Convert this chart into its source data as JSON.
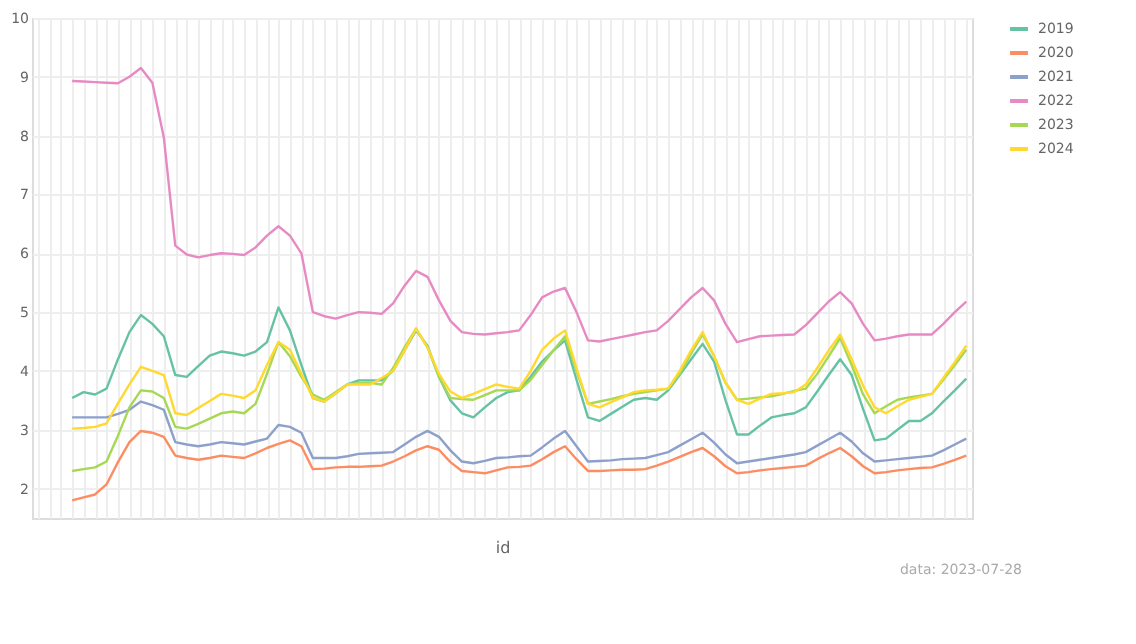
{
  "chart_data": {
    "type": "line",
    "xlabel": "id",
    "annotations": [
      "data: 2023-07-28"
    ],
    "categories": [
      null,
      null,
      null,
      null,
      null,
      null,
      null,
      null,
      null,
      null,
      null,
      null,
      null,
      null,
      null,
      null,
      null,
      null,
      null,
      null,
      null,
      null,
      null,
      null,
      null,
      null,
      null,
      null,
      null,
      null,
      null,
      null,
      null,
      null,
      null,
      null,
      null,
      null,
      null,
      null,
      null,
      null,
      null,
      null,
      null,
      null,
      null,
      null,
      null,
      null,
      null,
      null,
      null,
      null,
      null,
      null,
      null,
      null,
      null,
      null,
      null,
      null,
      null,
      null,
      null,
      null,
      null,
      null,
      null,
      null,
      null,
      null,
      null,
      null,
      null,
      null,
      null,
      null,
      null,
      null,
      null,
      null
    ],
    "ylim": [
      1.5,
      10
    ],
    "yticks": [
      2,
      3,
      4,
      5,
      6,
      7,
      8,
      9,
      10
    ],
    "grid": true,
    "legend": "top right",
    "marker": "none",
    "line_style": "solid",
    "series": [
      {
        "name": "2019",
        "color": "#66c2a5",
        "values": [
          null,
          null,
          null,
          3.54,
          3.64,
          3.6,
          3.7,
          4.2,
          4.66,
          4.95,
          4.8,
          4.59,
          3.93,
          3.9,
          4.08,
          4.26,
          4.33,
          4.3,
          4.26,
          4.33,
          4.49,
          5.08,
          4.69,
          4.1,
          3.54,
          3.48,
          3.62,
          3.77,
          3.84,
          3.84,
          3.84,
          4.0,
          4.35,
          4.69,
          4.43,
          3.9,
          3.5,
          3.28,
          3.21,
          3.38,
          3.54,
          3.64,
          3.67,
          3.9,
          4.16,
          4.35,
          4.52,
          3.85,
          3.21,
          3.15,
          3.27,
          3.39,
          3.51,
          3.54,
          3.51,
          3.67,
          3.93,
          4.2,
          4.46,
          4.16,
          3.5,
          2.92,
          2.92,
          3.07,
          3.21,
          3.25,
          3.28,
          3.38,
          3.65,
          3.93,
          4.2,
          3.93,
          3.35,
          2.82,
          2.85,
          3.0,
          3.15,
          3.15,
          3.28,
          3.48,
          3.67,
          3.87
        ]
      },
      {
        "name": "2020",
        "color": "#fc8d62",
        "values": [
          null,
          null,
          null,
          1.8,
          1.85,
          1.9,
          2.07,
          2.45,
          2.79,
          2.98,
          2.95,
          2.88,
          2.56,
          2.52,
          2.49,
          2.52,
          2.56,
          2.54,
          2.52,
          2.6,
          2.69,
          2.76,
          2.82,
          2.72,
          2.33,
          2.34,
          2.36,
          2.37,
          2.37,
          2.38,
          2.39,
          2.46,
          2.55,
          2.65,
          2.72,
          2.66,
          2.45,
          2.3,
          2.28,
          2.26,
          2.31,
          2.36,
          2.37,
          2.39,
          2.5,
          2.62,
          2.72,
          2.5,
          2.3,
          2.3,
          2.31,
          2.32,
          2.32,
          2.33,
          2.39,
          2.46,
          2.54,
          2.62,
          2.69,
          2.55,
          2.38,
          2.26,
          2.28,
          2.31,
          2.33,
          2.35,
          2.37,
          2.39,
          2.5,
          2.6,
          2.69,
          2.55,
          2.38,
          2.26,
          2.28,
          2.31,
          2.33,
          2.35,
          2.36,
          2.42,
          2.49,
          2.56
        ]
      },
      {
        "name": "2021",
        "color": "#8da0cb",
        "values": [
          null,
          null,
          null,
          3.21,
          3.21,
          3.21,
          3.21,
          3.27,
          3.34,
          3.48,
          3.42,
          3.34,
          2.79,
          2.75,
          2.72,
          2.75,
          2.79,
          2.77,
          2.75,
          2.8,
          2.85,
          3.08,
          3.05,
          2.95,
          2.52,
          2.52,
          2.52,
          2.55,
          2.59,
          2.6,
          2.61,
          2.62,
          2.75,
          2.88,
          2.98,
          2.88,
          2.65,
          2.46,
          2.43,
          2.47,
          2.52,
          2.53,
          2.55,
          2.56,
          2.7,
          2.85,
          2.98,
          2.72,
          2.46,
          2.47,
          2.48,
          2.5,
          2.51,
          2.52,
          2.57,
          2.62,
          2.73,
          2.84,
          2.95,
          2.78,
          2.58,
          2.43,
          2.46,
          2.49,
          2.52,
          2.55,
          2.58,
          2.62,
          2.73,
          2.84,
          2.95,
          2.8,
          2.6,
          2.46,
          2.48,
          2.5,
          2.52,
          2.54,
          2.56,
          2.65,
          2.75,
          2.85
        ]
      },
      {
        "name": "2022",
        "color": "#e78ac3",
        "values": [
          null,
          null,
          null,
          8.93,
          8.92,
          8.91,
          8.9,
          8.89,
          9.0,
          9.15,
          8.9,
          7.97,
          6.13,
          5.98,
          5.93,
          5.97,
          6.0,
          5.99,
          5.97,
          6.1,
          6.3,
          6.46,
          6.3,
          6.0,
          5.0,
          4.93,
          4.89,
          4.95,
          5.0,
          4.99,
          4.97,
          5.15,
          5.45,
          5.7,
          5.6,
          5.2,
          4.85,
          4.66,
          4.63,
          4.62,
          4.64,
          4.66,
          4.69,
          4.95,
          5.25,
          5.35,
          5.41,
          5.0,
          4.52,
          4.5,
          4.54,
          4.58,
          4.62,
          4.66,
          4.69,
          4.85,
          5.05,
          5.25,
          5.41,
          5.2,
          4.8,
          4.49,
          4.54,
          4.59,
          4.6,
          4.61,
          4.62,
          4.78,
          4.98,
          5.18,
          5.34,
          5.15,
          4.8,
          4.52,
          4.55,
          4.59,
          4.62,
          4.62,
          4.62,
          4.8,
          5.0,
          5.18
        ]
      },
      {
        "name": "2023",
        "color": "#a6d854",
        "values": [
          null,
          null,
          null,
          2.3,
          2.33,
          2.36,
          2.46,
          2.9,
          3.38,
          3.67,
          3.65,
          3.54,
          3.05,
          3.02,
          3.1,
          3.19,
          3.28,
          3.31,
          3.28,
          3.44,
          3.95,
          4.49,
          4.25,
          3.9,
          3.6,
          3.51,
          3.64,
          3.77,
          3.79,
          3.8,
          3.77,
          4.05,
          4.4,
          4.72,
          4.4,
          3.9,
          3.54,
          3.52,
          3.51,
          3.59,
          3.67,
          3.67,
          3.67,
          3.85,
          4.1,
          4.35,
          4.59,
          4.0,
          3.44,
          3.48,
          3.52,
          3.57,
          3.61,
          3.64,
          3.67,
          3.7,
          3.95,
          4.3,
          4.62,
          4.25,
          3.8,
          3.51,
          3.53,
          3.55,
          3.57,
          3.61,
          3.66,
          3.7,
          3.95,
          4.25,
          4.56,
          4.1,
          3.6,
          3.28,
          3.4,
          3.51,
          3.55,
          3.58,
          3.61,
          3.85,
          4.1,
          4.36
        ]
      },
      {
        "name": "2024",
        "color": "#ffd92f",
        "values": [
          null,
          null,
          null,
          3.02,
          3.03,
          3.05,
          3.11,
          3.45,
          3.77,
          4.07,
          4.0,
          3.93,
          3.28,
          3.25,
          3.37,
          3.49,
          3.61,
          3.58,
          3.54,
          3.67,
          4.1,
          4.49,
          4.36,
          3.95,
          3.54,
          3.48,
          3.62,
          3.77,
          3.77,
          3.77,
          3.88,
          4.0,
          4.35,
          4.72,
          4.4,
          3.95,
          3.65,
          3.54,
          3.61,
          3.69,
          3.77,
          3.73,
          3.7,
          4.0,
          4.36,
          4.55,
          4.69,
          4.05,
          3.44,
          3.38,
          3.47,
          3.55,
          3.64,
          3.67,
          3.68,
          3.7,
          4.0,
          4.35,
          4.66,
          4.25,
          3.8,
          3.51,
          3.44,
          3.53,
          3.61,
          3.62,
          3.64,
          3.77,
          4.05,
          4.35,
          4.62,
          4.2,
          3.75,
          3.38,
          3.28,
          3.4,
          3.51,
          3.56,
          3.61,
          3.88,
          4.15,
          4.43
        ]
      }
    ]
  }
}
